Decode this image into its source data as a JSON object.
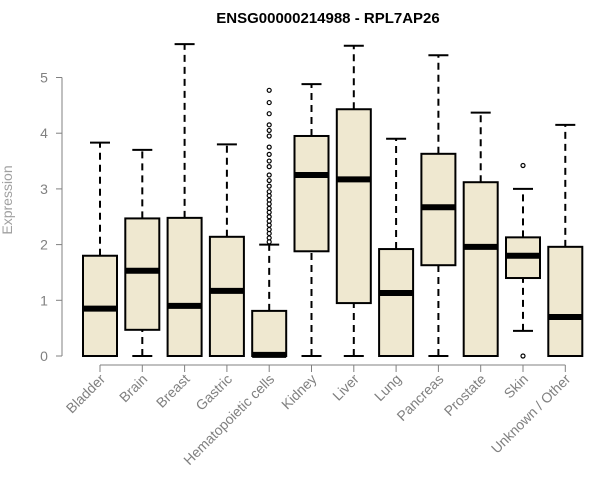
{
  "chart_data": {
    "type": "boxplot",
    "title": "ENSG00000214988 - RPL7AP26",
    "xlabel": "",
    "ylabel": "Expression",
    "ylim": [
      0,
      5.6
    ],
    "yticks": [
      0,
      1,
      2,
      3,
      4,
      5
    ],
    "box_fill": "#efe8d0",
    "categories": [
      "Bladder",
      "Brain",
      "Breast",
      "Gastric",
      "Hematopoietic cells",
      "Kidney",
      "Liver",
      "Lung",
      "Pancreas",
      "Prostate",
      "Skin",
      "Unknown / Other"
    ],
    "boxes": [
      {
        "name": "Bladder",
        "min": 0,
        "q1": 0,
        "median": 0.85,
        "q3": 1.8,
        "max": 3.83,
        "outliers": []
      },
      {
        "name": "Brain",
        "min": 0,
        "q1": 0.47,
        "median": 1.53,
        "q3": 2.47,
        "max": 3.7,
        "outliers": []
      },
      {
        "name": "Breast",
        "min": 0,
        "q1": 0,
        "median": 0.9,
        "q3": 2.48,
        "max": 5.6,
        "outliers": []
      },
      {
        "name": "Gastric",
        "min": 0,
        "q1": 0,
        "median": 1.17,
        "q3": 2.14,
        "max": 3.8,
        "outliers": []
      },
      {
        "name": "Hematopoietic cells",
        "min": 0,
        "q1": 0,
        "median": 0.02,
        "q3": 0.81,
        "max": 2.0,
        "outliers": [
          2.05,
          2.12,
          2.2,
          2.27,
          2.35,
          2.42,
          2.5,
          2.58,
          2.65,
          2.73,
          2.8,
          2.88,
          2.95,
          3.05,
          3.15,
          3.25,
          3.4,
          3.5,
          3.62,
          3.75,
          3.95,
          4.05,
          4.15,
          4.35,
          4.55,
          4.77
        ]
      },
      {
        "name": "Kidney",
        "min": 0,
        "q1": 1.88,
        "median": 3.25,
        "q3": 3.95,
        "max": 4.88,
        "outliers": []
      },
      {
        "name": "Liver",
        "min": 0,
        "q1": 0.95,
        "median": 3.17,
        "q3": 4.43,
        "max": 5.57,
        "outliers": []
      },
      {
        "name": "Lung",
        "min": 0,
        "q1": 0,
        "median": 1.13,
        "q3": 1.92,
        "max": 3.9,
        "outliers": []
      },
      {
        "name": "Pancreas",
        "min": 0,
        "q1": 1.63,
        "median": 2.67,
        "q3": 3.63,
        "max": 5.4,
        "outliers": []
      },
      {
        "name": "Prostate",
        "min": 0,
        "q1": 0,
        "median": 1.96,
        "q3": 3.12,
        "max": 4.37,
        "outliers": []
      },
      {
        "name": "Skin",
        "min": 0.45,
        "q1": 1.4,
        "median": 1.8,
        "q3": 2.13,
        "max": 3.0,
        "outliers": [
          0.0,
          3.42
        ]
      },
      {
        "name": "Unknown / Other",
        "min": 0,
        "q1": 0,
        "median": 0.7,
        "q3": 1.96,
        "max": 4.15,
        "outliers": []
      }
    ]
  }
}
